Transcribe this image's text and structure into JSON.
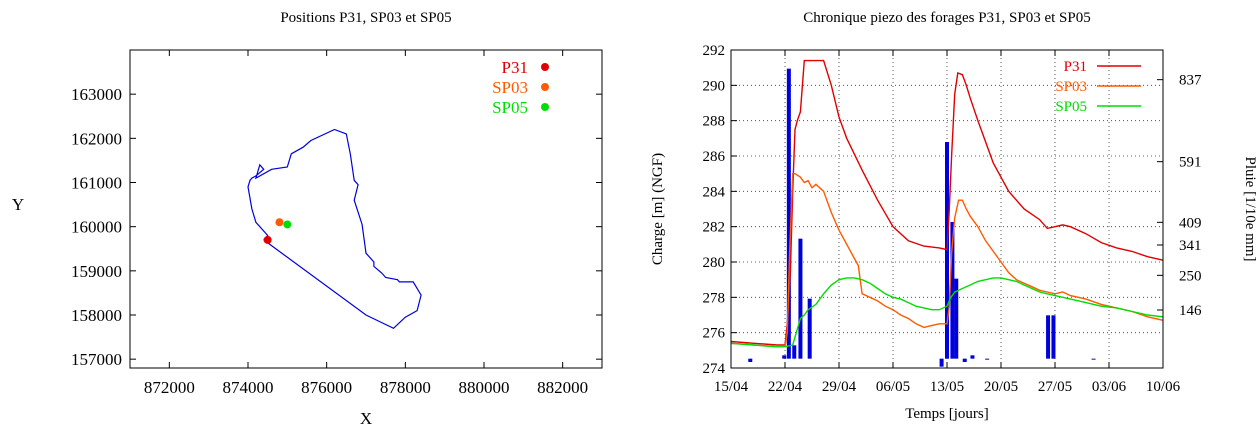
{
  "chart_data": [
    {
      "type": "scatter",
      "title": "Positions P31, SP03 et SP05",
      "xlabel": "X",
      "ylabel": "Y",
      "xlim": [
        871000,
        883000
      ],
      "ylim": [
        156800,
        164000
      ],
      "xticks": [
        872000,
        874000,
        876000,
        878000,
        880000,
        882000
      ],
      "yticks": [
        157000,
        158000,
        159000,
        160000,
        161000,
        162000,
        163000
      ],
      "grid": false,
      "legend_position": "top-right",
      "boundary": {
        "color": "#0000dd",
        "x": [
          874400,
          874500,
          874200,
          874100,
          874000,
          874050,
          874100,
          874200,
          874400,
          874300,
          874200,
          874600,
          875000,
          875100,
          875400,
          875600,
          876200,
          876500,
          876600,
          876700,
          876800,
          876700,
          876900,
          877000,
          877200,
          877200,
          877400,
          877500,
          877800,
          877850,
          878200,
          878400,
          878300,
          878000,
          877700,
          877000,
          874400
        ],
        "y": [
          159700,
          159800,
          160100,
          160400,
          160900,
          161050,
          161100,
          161150,
          161300,
          161400,
          161100,
          161300,
          161350,
          161650,
          161800,
          161950,
          162200,
          162100,
          161650,
          161050,
          160950,
          160600,
          160050,
          159400,
          159200,
          159100,
          158950,
          158850,
          158800,
          158750,
          158750,
          158450,
          158100,
          157950,
          157700,
          158000,
          159700
        ]
      },
      "series": [
        {
          "name": "P31",
          "color": "#e00000",
          "x": [
            874500
          ],
          "y": [
            159700
          ]
        },
        {
          "name": "SP03",
          "color": "#ff5a00",
          "x": [
            874800
          ],
          "y": [
            160100
          ]
        },
        {
          "name": "SP05",
          "color": "#00dd00",
          "x": [
            875000
          ],
          "y": [
            160050
          ]
        }
      ]
    },
    {
      "type": "line",
      "title": "Chronique piezo des forages P31, SP03 et SP05",
      "xlabel": "Temps [jours]",
      "ylabel": "Charge [m] (NGF)",
      "y2label": "Pluie [1/10e mm]",
      "xlim": [
        0,
        56
      ],
      "ylim": [
        274,
        292
      ],
      "x_tick_labels": [
        "15/04",
        "22/04",
        "29/04",
        "06/05",
        "13/05",
        "20/05",
        "27/05",
        "03/06",
        "10/06"
      ],
      "x_tick_days": [
        0,
        7,
        14,
        21,
        28,
        35,
        42,
        49,
        56
      ],
      "yticks": [
        274,
        276,
        278,
        280,
        282,
        284,
        286,
        288,
        290,
        292
      ],
      "y2ticks": [
        146,
        250,
        341,
        409,
        591,
        837
      ],
      "y2lim": [
        -28,
        926
      ],
      "grid": true,
      "legend_position": "top-right",
      "series": [
        {
          "name": "P31",
          "color": "#e00000",
          "x": [
            0,
            3,
            6,
            7,
            7.3,
            7.7,
            8,
            8.3,
            8.6,
            9,
            9.5,
            10,
            11,
            12,
            13,
            14,
            15,
            17,
            19,
            21,
            23,
            25,
            27,
            28,
            28.3,
            28.6,
            29,
            29.4,
            30,
            30.5,
            31,
            32,
            33,
            34,
            36,
            38,
            40,
            41,
            42,
            43,
            44,
            46,
            48,
            50,
            52,
            54,
            56
          ],
          "y": [
            275.5,
            275.4,
            275.3,
            275.3,
            276.5,
            279.5,
            284,
            287.5,
            288,
            288.5,
            291.4,
            291.4,
            291.4,
            291.4,
            290.0,
            288.2,
            287.0,
            285.2,
            283.5,
            282.0,
            281.2,
            280.9,
            280.8,
            280.7,
            283.0,
            286.0,
            289.5,
            290.7,
            290.6,
            290.0,
            289.3,
            288.0,
            286.8,
            285.6,
            284.0,
            283.0,
            282.4,
            281.9,
            282.0,
            282.1,
            282.0,
            281.6,
            281.1,
            280.8,
            280.6,
            280.3,
            280.1
          ]
        },
        {
          "name": "SP03",
          "color": "#ff5a00",
          "x": [
            0,
            3,
            6,
            7,
            7.3,
            7.6,
            8,
            8.3,
            9,
            9.5,
            10,
            10.5,
            11,
            12,
            13,
            14,
            15,
            16,
            16.5,
            17,
            18,
            19,
            20,
            21,
            22,
            23,
            24,
            25,
            26,
            27,
            28,
            28.3,
            28.6,
            29,
            29.5,
            30,
            30.5,
            31,
            32,
            33,
            34,
            35,
            36,
            37,
            38,
            39,
            40,
            41,
            42,
            43,
            44,
            46,
            48,
            50,
            52,
            54,
            56
          ],
          "y": [
            275.4,
            275.3,
            275.2,
            275.2,
            276.0,
            280.5,
            285.0,
            285.0,
            284.8,
            284.5,
            284.6,
            284.2,
            284.4,
            284.0,
            282.8,
            281.8,
            281.0,
            280.2,
            279.8,
            278.2,
            278.0,
            277.8,
            277.5,
            277.3,
            277.0,
            276.8,
            276.5,
            276.3,
            276.4,
            276.5,
            276.5,
            277.5,
            280.5,
            282.5,
            283.5,
            283.5,
            283.0,
            282.6,
            282.0,
            281.2,
            280.6,
            280.0,
            279.4,
            279.0,
            278.8,
            278.6,
            278.4,
            278.3,
            278.2,
            278.3,
            278.1,
            277.9,
            277.6,
            277.4,
            277.2,
            276.9,
            276.7
          ]
        },
        {
          "name": "SP05",
          "color": "#00dd00",
          "x": [
            0,
            3,
            6,
            7,
            8,
            9,
            9.5,
            10,
            11,
            12,
            13,
            14,
            15,
            16,
            17,
            18,
            19,
            20,
            21,
            22,
            23,
            24,
            25,
            26,
            27,
            28,
            28.5,
            29,
            30,
            31,
            32,
            33,
            34,
            35,
            36,
            37,
            38,
            39,
            40,
            41,
            42,
            44,
            46,
            48,
            50,
            52,
            54,
            56
          ],
          "y": [
            275.4,
            275.3,
            275.2,
            275.2,
            275.3,
            276.8,
            277.0,
            277.3,
            277.6,
            278.2,
            278.7,
            279.0,
            279.1,
            279.1,
            279.0,
            278.8,
            278.5,
            278.2,
            278.0,
            277.9,
            277.7,
            277.5,
            277.4,
            277.3,
            277.3,
            277.5,
            278.0,
            278.3,
            278.5,
            278.7,
            278.9,
            279.0,
            279.1,
            279.1,
            279.0,
            278.9,
            278.7,
            278.5,
            278.3,
            278.2,
            278.1,
            277.9,
            277.7,
            277.5,
            277.4,
            277.2,
            277.0,
            276.9
          ]
        }
      ],
      "rain": {
        "axis": "y2",
        "color": "#0000dd",
        "x": [
          2.5,
          6.9,
          7.5,
          8.2,
          9.0,
          10.2,
          27.3,
          28.0,
          28.7,
          29.2,
          30.3,
          31.3,
          33.2,
          41.1,
          41.8,
          47.0
        ],
        "values": [
          -10,
          10,
          870,
          40,
          360,
          180,
          -24,
          650,
          410,
          240,
          -10,
          10,
          -2,
          130,
          130,
          -2
        ]
      }
    }
  ]
}
